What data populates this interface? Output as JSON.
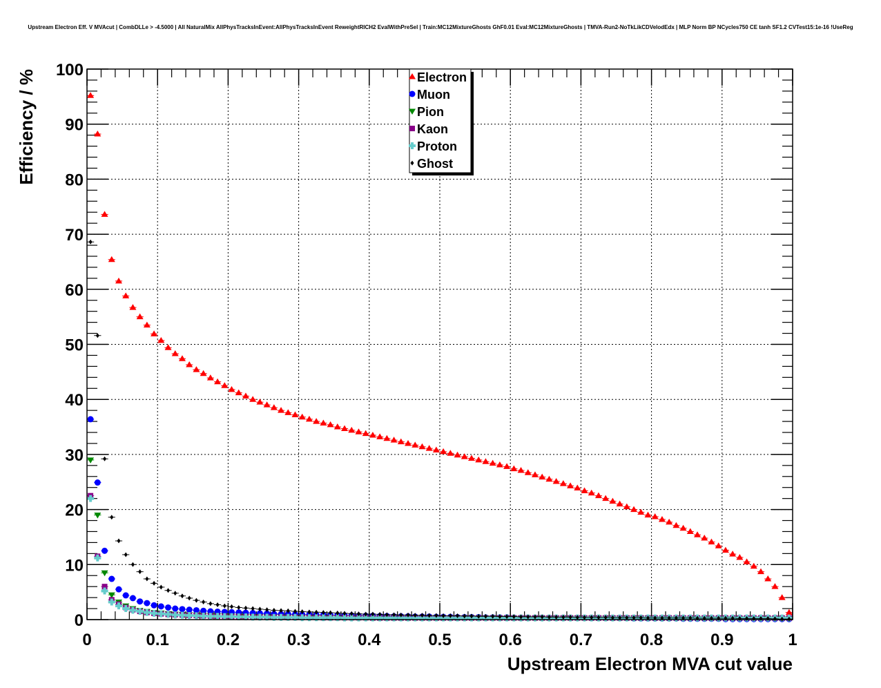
{
  "chart_data": {
    "type": "scatter",
    "title": "Upstream Electron Eff. V MVAcut | CombDLLe > -4.5000 | All NaturalMix AllPhysTracksInEvent:AllPhysTracksInEvent ReweightRICH2 EvalWithPreSel | Train:MC12MixtureGhosts GhF0.01 Eval:MC12MixtureGhosts | TMVA-Run2-NoTkLikCDVelodEdx | MLP Norm BP NCycles750 CE tanh SF1.2 CVTest15:1e-16 !UseReg",
    "xlabel": "Upstream Electron MVA cut value",
    "ylabel": "Efficiency / %",
    "xlim": [
      0,
      1
    ],
    "ylim": [
      0,
      100
    ],
    "grid": true,
    "legend_position": "top-center",
    "x_ticks": [
      "0",
      "0.1",
      "0.2",
      "0.3",
      "0.4",
      "0.5",
      "0.6",
      "0.7",
      "0.8",
      "0.9",
      "1"
    ],
    "y_ticks": [
      "0",
      "10",
      "20",
      "30",
      "40",
      "50",
      "60",
      "70",
      "80",
      "90",
      "100"
    ],
    "bin_width": 0.01,
    "x_start": 0.005,
    "series": [
      {
        "name": "Electron",
        "color": "#ff0000",
        "marker": "triangle-up",
        "values": [
          95.2,
          88.2,
          73.6,
          65.4,
          61.5,
          58.8,
          56.7,
          55.0,
          53.5,
          51.9,
          50.7,
          49.4,
          48.3,
          47.4,
          46.3,
          45.4,
          44.7,
          43.9,
          43.2,
          42.5,
          41.8,
          41.2,
          40.6,
          40.0,
          39.5,
          39.0,
          38.5,
          38.0,
          37.6,
          37.2,
          36.8,
          36.4,
          36.0,
          35.7,
          35.4,
          35.0,
          34.7,
          34.4,
          34.1,
          33.8,
          33.5,
          33.2,
          32.9,
          32.6,
          32.3,
          32.0,
          31.7,
          31.4,
          31.1,
          30.8,
          30.5,
          30.2,
          29.9,
          29.6,
          29.3,
          29.0,
          28.7,
          28.4,
          28.1,
          27.8,
          27.4,
          27.1,
          26.7,
          26.3,
          25.9,
          25.5,
          25.1,
          24.7,
          24.3,
          23.9,
          23.4,
          23.0,
          22.5,
          22.0,
          21.5,
          21.0,
          20.5,
          20.0,
          19.5,
          19.0,
          18.7,
          18.2,
          17.7,
          17.1,
          16.6,
          16.0,
          15.4,
          14.8,
          14.1,
          13.4,
          12.6,
          11.9,
          11.3,
          10.5,
          9.7,
          8.7,
          7.4,
          6.0,
          4.0,
          1.3
        ]
      },
      {
        "name": "Muon",
        "color": "#0000ff",
        "marker": "circle",
        "values": [
          36.4,
          24.9,
          12.5,
          7.4,
          5.5,
          4.4,
          3.9,
          3.3,
          3.0,
          2.6,
          2.4,
          2.2,
          2.0,
          1.9,
          1.8,
          1.7,
          1.6,
          1.5,
          1.45,
          1.4,
          1.35,
          1.3,
          1.25,
          1.2,
          1.15,
          1.1,
          1.05,
          1.0,
          1.0,
          0.95,
          0.9,
          0.9,
          0.85,
          0.85,
          0.8,
          0.8,
          0.75,
          0.75,
          0.7,
          0.7,
          0.7,
          0.65,
          0.65,
          0.6,
          0.6,
          0.6,
          0.55,
          0.55,
          0.55,
          0.5,
          0.5,
          0.5,
          0.45,
          0.45,
          0.45,
          0.45,
          0.4,
          0.4,
          0.4,
          0.4,
          0.35,
          0.35,
          0.35,
          0.35,
          0.35,
          0.3,
          0.3,
          0.3,
          0.3,
          0.3,
          0.3,
          0.25,
          0.25,
          0.25,
          0.25,
          0.25,
          0.25,
          0.2,
          0.2,
          0.2,
          0.2,
          0.2,
          0.2,
          0.2,
          0.15,
          0.15,
          0.15,
          0.15,
          0.15,
          0.15,
          0.1,
          0.1,
          0.1,
          0.1,
          0.1,
          0.1,
          0.1,
          0.1,
          0.1,
          0.1
        ]
      },
      {
        "name": "Pion",
        "color": "#008800",
        "marker": "triangle-down",
        "values": [
          29.0,
          19.0,
          8.5,
          4.5,
          3.2,
          2.5,
          2.0,
          1.7,
          1.5,
          1.3,
          1.2,
          1.1,
          1.0,
          0.95,
          0.9,
          0.85,
          0.8,
          0.75,
          0.7,
          0.7,
          0.65,
          0.6,
          0.6,
          0.55,
          0.55,
          0.5,
          0.5,
          0.5,
          0.45,
          0.45,
          0.45,
          0.4,
          0.4,
          0.4,
          0.4,
          0.35,
          0.35,
          0.35,
          0.35,
          0.35,
          0.3,
          0.3,
          0.3,
          0.3,
          0.3,
          0.3,
          0.3,
          0.3,
          0.3,
          0.3,
          0.3,
          0.3,
          0.3,
          0.3,
          0.3,
          0.3,
          0.3,
          0.3,
          0.3,
          0.3,
          0.25,
          0.25,
          0.25,
          0.25,
          0.25,
          0.25,
          0.25,
          0.25,
          0.25,
          0.25,
          0.25,
          0.25,
          0.25,
          0.25,
          0.25,
          0.25,
          0.25,
          0.25,
          0.25,
          0.25,
          0.2,
          0.2,
          0.2,
          0.2,
          0.2,
          0.2,
          0.2,
          0.2,
          0.2,
          0.2,
          0.2,
          0.2,
          0.2,
          0.2,
          0.2,
          0.2,
          0.2,
          0.2,
          0.2,
          0.2
        ]
      },
      {
        "name": "Kaon",
        "color": "#880088",
        "marker": "square",
        "values": [
          22.5,
          11.5,
          6.0,
          3.6,
          2.8,
          2.2,
          1.8,
          1.5,
          1.3,
          1.15,
          1.05,
          0.95,
          0.9,
          0.85,
          0.8,
          0.75,
          0.7,
          0.65,
          0.6,
          0.6,
          0.55,
          0.55,
          0.5,
          0.5,
          0.5,
          0.45,
          0.45,
          0.45,
          0.4,
          0.4,
          0.4,
          0.4,
          0.4,
          0.35,
          0.35,
          0.35,
          0.35,
          0.35,
          0.35,
          0.35,
          0.3,
          0.3,
          0.3,
          0.3,
          0.3,
          0.3,
          0.3,
          0.3,
          0.3,
          0.3,
          0.3,
          0.3,
          0.3,
          0.3,
          0.3,
          0.3,
          0.3,
          0.3,
          0.3,
          0.3,
          0.3,
          0.3,
          0.3,
          0.3,
          0.3,
          0.3,
          0.3,
          0.3,
          0.3,
          0.3,
          0.3,
          0.3,
          0.3,
          0.3,
          0.3,
          0.3,
          0.3,
          0.3,
          0.3,
          0.3,
          0.3,
          0.3,
          0.3,
          0.3,
          0.3,
          0.3,
          0.3,
          0.3,
          0.3,
          0.3,
          0.3,
          0.3,
          0.3,
          0.3,
          0.3,
          0.3,
          0.3,
          0.3,
          0.3,
          0.3
        ]
      },
      {
        "name": "Proton",
        "color": "#66cccc",
        "marker": "cross",
        "values": [
          22.0,
          11.2,
          5.2,
          3.2,
          2.5,
          2.0,
          1.7,
          1.5,
          1.3,
          1.15,
          1.05,
          0.95,
          0.85,
          0.8,
          0.75,
          0.7,
          0.65,
          0.6,
          0.6,
          0.55,
          0.55,
          0.5,
          0.5,
          0.45,
          0.45,
          0.45,
          0.4,
          0.4,
          0.4,
          0.4,
          0.35,
          0.35,
          0.35,
          0.35,
          0.35,
          0.35,
          0.3,
          0.3,
          0.3,
          0.3,
          0.3,
          0.3,
          0.3,
          0.3,
          0.3,
          0.3,
          0.3,
          0.3,
          0.3,
          0.3,
          0.3,
          0.3,
          0.3,
          0.3,
          0.3,
          0.3,
          0.3,
          0.3,
          0.3,
          0.3,
          0.3,
          0.3,
          0.3,
          0.3,
          0.3,
          0.3,
          0.3,
          0.3,
          0.3,
          0.3,
          0.3,
          0.3,
          0.3,
          0.3,
          0.3,
          0.3,
          0.3,
          0.3,
          0.3,
          0.3,
          0.3,
          0.3,
          0.3,
          0.3,
          0.3,
          0.3,
          0.3,
          0.3,
          0.3,
          0.3,
          0.3,
          0.3,
          0.3,
          0.3,
          0.3,
          0.3,
          0.3,
          0.3,
          0.3,
          0.3
        ]
      },
      {
        "name": "Ghost",
        "color": "#000000",
        "marker": "diamond",
        "values": [
          68.6,
          51.6,
          29.2,
          18.6,
          14.3,
          11.8,
          10.0,
          8.7,
          7.4,
          6.6,
          5.9,
          5.3,
          4.8,
          4.3,
          3.9,
          3.5,
          3.2,
          2.9,
          2.7,
          2.5,
          2.35,
          2.2,
          2.1,
          2.0,
          1.9,
          1.8,
          1.7,
          1.65,
          1.6,
          1.5,
          1.45,
          1.4,
          1.35,
          1.3,
          1.25,
          1.2,
          1.15,
          1.1,
          1.05,
          1.0,
          1.0,
          0.95,
          0.9,
          0.9,
          0.85,
          0.85,
          0.8,
          0.8,
          0.75,
          0.75,
          0.7,
          0.7,
          0.7,
          0.65,
          0.65,
          0.6,
          0.6,
          0.6,
          0.55,
          0.55,
          0.55,
          0.5,
          0.5,
          0.5,
          0.5,
          0.45,
          0.45,
          0.45,
          0.45,
          0.4,
          0.4,
          0.4,
          0.4,
          0.4,
          0.35,
          0.35,
          0.35,
          0.35,
          0.35,
          0.3,
          0.3,
          0.3,
          0.3,
          0.3,
          0.3,
          0.3,
          0.25,
          0.25,
          0.25,
          0.25,
          0.25,
          0.25,
          0.2,
          0.2,
          0.2,
          0.2,
          0.2,
          0.15,
          0.1,
          0.1
        ]
      }
    ]
  }
}
